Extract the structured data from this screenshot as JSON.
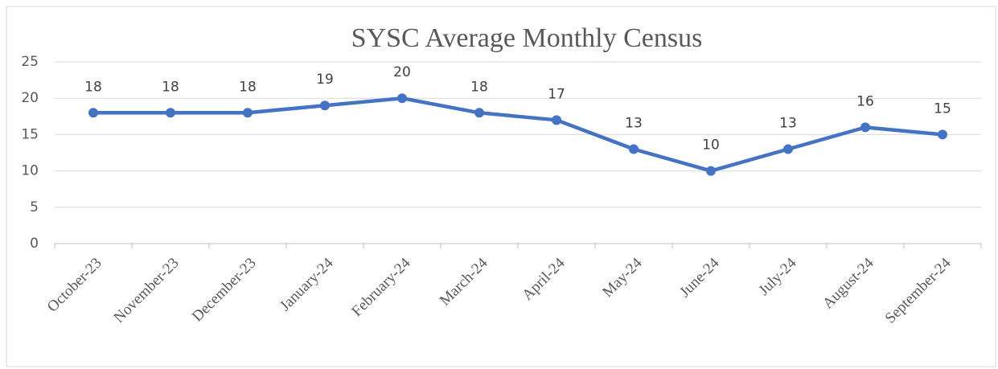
{
  "chart_data": {
    "type": "line",
    "title": "SYSC Average Monthly Census",
    "categories": [
      "October-23",
      "November-23",
      "December-23",
      "January-24",
      "February-24",
      "March-24",
      "April-24",
      "May-24",
      "June-24",
      "July-24",
      "August-24",
      "September-24"
    ],
    "series": [
      {
        "name": "Census",
        "color": "#4472c4",
        "values": [
          18,
          18,
          18,
          19,
          20,
          18,
          17,
          13,
          10,
          13,
          16,
          15
        ]
      }
    ],
    "ylim": [
      0,
      25
    ],
    "yticks": [
      0,
      5,
      10,
      15,
      20,
      25
    ],
    "grid": true
  }
}
